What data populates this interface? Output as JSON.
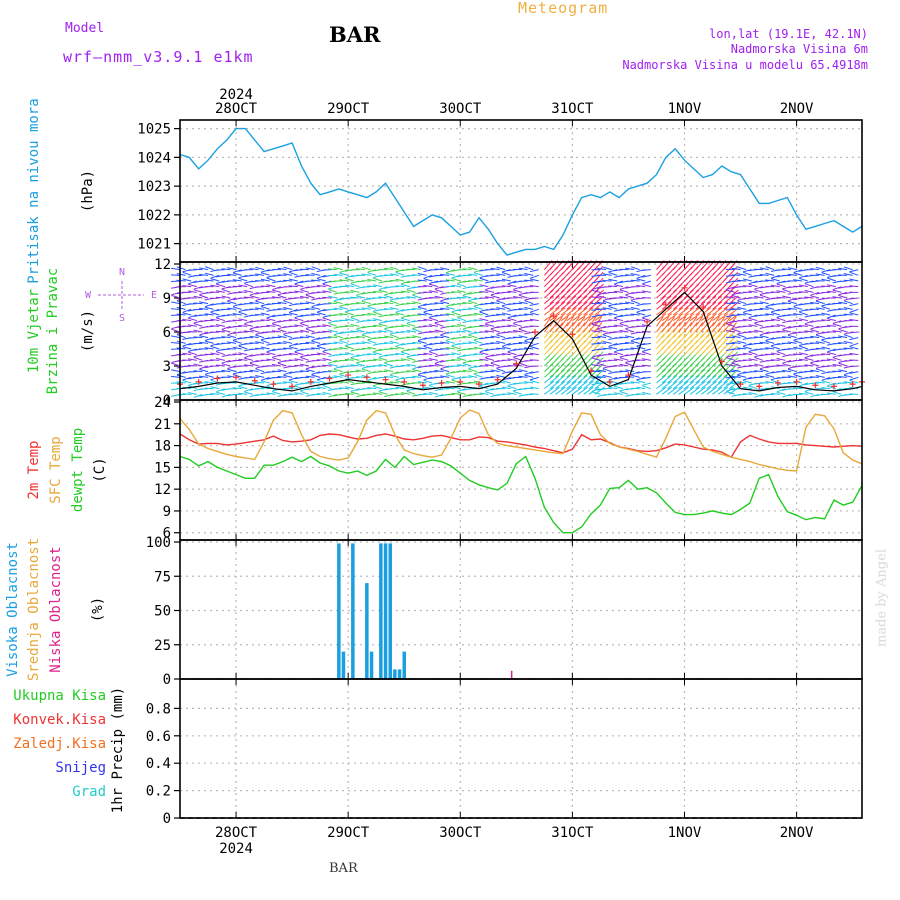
{
  "header": {
    "title": "BAR",
    "meteogram": "Meteogram",
    "model_label": "Model",
    "model_name": "wrf—nmm_v3.9.1 e1km",
    "lonlat": "lon,lat (19.1E, 42.1N)",
    "altitude": "Nadmorska Visina 6m",
    "model_altitude": "Nadmorska Visina u modelu 65.4918m",
    "made_by": "made by Angel",
    "footer": "BAR"
  },
  "colors": {
    "pressure": "#1aa0e0",
    "t2m": "#ee3333",
    "sfc": "#e8a83a",
    "dewpt": "#22cc22",
    "high_cloud": "#1aa0e0",
    "mid_cloud": "#e8a83a",
    "low_cloud": "#e0208a",
    "wind_speed": "#000000",
    "gust": "#ee3333",
    "total_precip": "#22cc22",
    "conv_precip": "#ee3333",
    "frozen_precip": "#f07020",
    "snow": "#3333ee",
    "graupel": "#22cccc",
    "vane_gradient": [
      "#8a2be2",
      "#2050ff",
      "#19c5e6",
      "#3bd14c",
      "#f2c530",
      "#ff5c2a",
      "#ff1f55"
    ]
  },
  "chart_data": {
    "type": "line",
    "time_axis": {
      "year": "2024",
      "day_labels": [
        "28OCT",
        "29OCT",
        "30OCT",
        "31OCT",
        "1NOV",
        "2NOV"
      ]
    },
    "panels": [
      {
        "id": "pressure",
        "type": "line",
        "labels": [
          "Pritisak na nivou mora"
        ],
        "unit": "(hPa)",
        "ylim": [
          1020.5,
          1025.3
        ],
        "yticks": [
          1021,
          1022,
          1023,
          1024,
          1025
        ],
        "grid": true,
        "series": [
          {
            "name": "Pritisak na nivou mora",
            "x": [
              0,
              2,
              4,
              6,
              8,
              10,
              12,
              14,
              16,
              18,
              20,
              22,
              24,
              26,
              28,
              30,
              32,
              34,
              36,
              38,
              40,
              42,
              44,
              46,
              48,
              50,
              52,
              54,
              56,
              58,
              60,
              62,
              64,
              66,
              68,
              70,
              72,
              74,
              76,
              78,
              80,
              82,
              84,
              86,
              88,
              90,
              92,
              94,
              96,
              98,
              100,
              102,
              104,
              106,
              108,
              110,
              112,
              114,
              116,
              118,
              120,
              122,
              124,
              126,
              128,
              130,
              132,
              134,
              136,
              138,
              140,
              142,
              144,
              146
            ],
            "values": [
              1024.1,
              1024.0,
              1023.6,
              1023.9,
              1024.3,
              1024.6,
              1025.0,
              1025.0,
              1024.6,
              1024.2,
              1024.3,
              1024.4,
              1024.5,
              1023.7,
              1023.1,
              1022.7,
              1022.8,
              1022.9,
              1022.8,
              1022.7,
              1022.6,
              1022.8,
              1023.1,
              1022.6,
              1022.1,
              1021.6,
              1021.8,
              1022.0,
              1021.9,
              1021.6,
              1021.3,
              1021.4,
              1021.9,
              1021.5,
              1021.0,
              1020.6,
              1020.7,
              1020.8,
              1020.8,
              1020.9,
              1020.8,
              1021.3,
              1022.0,
              1022.6,
              1022.7,
              1022.6,
              1022.8,
              1022.6,
              1022.9,
              1023.0,
              1023.1,
              1023.4,
              1024.0,
              1024.3,
              1023.9,
              1023.6,
              1023.3,
              1023.4,
              1023.7,
              1023.5,
              1023.4,
              1022.9,
              1022.4,
              1022.4,
              1022.5,
              1022.6,
              1022.0,
              1021.5,
              1021.6,
              1021.7,
              1021.8,
              1021.6,
              1021.4,
              1021.6
            ],
            "color": "#1aa0e0"
          }
        ]
      },
      {
        "id": "wind",
        "type": "vector",
        "labels": [
          "10m Vjetar",
          "Brzina i Pravac"
        ],
        "unit": "(m/s)",
        "compass": [
          "N",
          "W",
          "E",
          "S"
        ],
        "ylim": [
          0,
          12
        ],
        "yticks": [
          0,
          3,
          6,
          9,
          12
        ],
        "grid": true,
        "series": [
          {
            "name": "10m Vjetar",
            "x": [
              0,
              4,
              8,
              12,
              16,
              20,
              24,
              28,
              32,
              36,
              40,
              44,
              48,
              52,
              56,
              60,
              64,
              68,
              72,
              76,
              80,
              84,
              88,
              92,
              96,
              100,
              104,
              108,
              112,
              116,
              120,
              124,
              128,
              132,
              136,
              140,
              144,
              146
            ],
            "values": [
              1.0,
              1.2,
              1.5,
              1.6,
              1.3,
              1.0,
              0.8,
              1.2,
              1.5,
              1.8,
              1.6,
              1.4,
              1.2,
              0.9,
              1.1,
              1.2,
              1.0,
              1.4,
              2.8,
              5.6,
              7.0,
              5.4,
              2.2,
              1.2,
              1.8,
              6.5,
              8.0,
              9.5,
              7.8,
              3.0,
              1.0,
              0.8,
              1.1,
              1.2,
              0.9,
              0.8,
              1.0,
              1.2
            ],
            "color": "#000000"
          }
        ]
      },
      {
        "id": "temperature",
        "type": "line",
        "labels": [
          "2m Temp",
          "SFC Temp",
          "dewpt Temp"
        ],
        "unit": "(C)",
        "ylim": [
          5,
          24
        ],
        "yticks": [
          6,
          9,
          12,
          15,
          18,
          21,
          24
        ],
        "grid": true,
        "series": [
          {
            "name": "2m Temp",
            "x": [
              0,
              2,
              4,
              6,
              8,
              10,
              12,
              14,
              16,
              18,
              20,
              22,
              24,
              26,
              28,
              30,
              32,
              34,
              36,
              38,
              40,
              42,
              44,
              46,
              48,
              50,
              52,
              54,
              56,
              58,
              60,
              62,
              64,
              66,
              68,
              70,
              72,
              74,
              76,
              78,
              80,
              82,
              84,
              86,
              88,
              90,
              92,
              94,
              96,
              98,
              100,
              102,
              104,
              106,
              108,
              110,
              112,
              114,
              116,
              118,
              120,
              122,
              124,
              126,
              128,
              130,
              132,
              134,
              136,
              138,
              140,
              142,
              144,
              146
            ],
            "values": [
              19.6,
              18.8,
              18.2,
              18.3,
              18.3,
              18.1,
              18.2,
              18.4,
              18.6,
              18.8,
              19.3,
              18.7,
              18.5,
              18.6,
              18.8,
              19.4,
              19.6,
              19.5,
              19.2,
              18.9,
              19.0,
              19.4,
              19.6,
              19.3,
              18.9,
              18.8,
              19.0,
              19.3,
              19.4,
              19.1,
              18.8,
              18.8,
              19.2,
              19.1,
              18.6,
              18.5,
              18.3,
              18.1,
              17.8,
              17.6,
              17.3,
              17.0,
              17.5,
              19.5,
              18.8,
              18.9,
              18.4,
              17.8,
              17.6,
              17.3,
              17.2,
              17.3,
              17.7,
              18.2,
              18.1,
              17.8,
              17.5,
              17.4,
              17.1,
              16.4,
              18.5,
              19.4,
              18.9,
              18.5,
              18.3,
              18.3,
              18.3,
              18.1,
              18.0,
              17.9,
              17.8,
              17.9,
              18.0,
              17.9
            ],
            "color": "#ee3333"
          },
          {
            "name": "SFC Temp",
            "x": [
              0,
              2,
              4,
              6,
              8,
              10,
              12,
              14,
              16,
              18,
              20,
              22,
              24,
              26,
              28,
              30,
              32,
              34,
              36,
              38,
              40,
              42,
              44,
              46,
              48,
              50,
              52,
              54,
              56,
              58,
              60,
              62,
              64,
              66,
              68,
              70,
              72,
              74,
              76,
              78,
              80,
              82,
              84,
              86,
              88,
              90,
              92,
              94,
              96,
              98,
              100,
              102,
              104,
              106,
              108,
              110,
              112,
              114,
              116,
              118,
              120,
              122,
              124,
              126,
              128,
              130,
              132,
              134,
              136,
              138,
              140,
              142,
              144,
              146
            ],
            "values": [
              21.7,
              20.2,
              18.2,
              17.6,
              17.2,
              16.8,
              16.5,
              16.3,
              16.1,
              18.5,
              21.5,
              22.8,
              22.5,
              19.5,
              17.2,
              16.5,
              16.2,
              16.0,
              16.3,
              18.5,
              21.5,
              22.8,
              22.5,
              19.5,
              17.4,
              16.9,
              16.6,
              16.4,
              16.7,
              19.0,
              21.8,
              22.9,
              22.4,
              19.5,
              18.3,
              18.0,
              17.8,
              17.6,
              17.4,
              17.2,
              17.0,
              16.9,
              20.0,
              22.5,
              22.3,
              19.5,
              18.3,
              17.8,
              17.5,
              17.2,
              16.8,
              16.4,
              19.0,
              22.0,
              22.6,
              20.2,
              17.8,
              17.2,
              16.8,
              16.4,
              16.1,
              15.8,
              15.4,
              15.1,
              14.8,
              14.6,
              14.5,
              20.5,
              22.3,
              22.1,
              20.3,
              17.0,
              16.0,
              15.5
            ],
            "color": "#e8a83a"
          },
          {
            "name": "dewpt Temp",
            "x": [
              0,
              2,
              4,
              6,
              8,
              10,
              12,
              14,
              16,
              18,
              20,
              22,
              24,
              26,
              28,
              30,
              32,
              34,
              36,
              38,
              40,
              42,
              44,
              46,
              48,
              50,
              52,
              54,
              56,
              58,
              60,
              62,
              64,
              66,
              68,
              70,
              72,
              74,
              76,
              78,
              80,
              82,
              84,
              86,
              88,
              90,
              92,
              94,
              96,
              98,
              100,
              102,
              104,
              106,
              108,
              110,
              112,
              114,
              116,
              118,
              120,
              122,
              124,
              126,
              128,
              130,
              132,
              134,
              136,
              138,
              140,
              142,
              144,
              146
            ],
            "values": [
              16.5,
              16.1,
              15.2,
              15.8,
              15.0,
              14.5,
              14.0,
              13.5,
              13.5,
              15.3,
              15.3,
              15.8,
              16.4,
              15.8,
              16.5,
              15.6,
              15.2,
              14.5,
              14.2,
              14.5,
              13.9,
              14.5,
              16.1,
              15.0,
              16.5,
              15.4,
              15.7,
              16.0,
              15.8,
              15.2,
              14.2,
              13.2,
              12.6,
              12.2,
              11.9,
              12.8,
              15.5,
              16.5,
              13.5,
              9.5,
              7.4,
              6.0,
              6.0,
              6.8,
              8.6,
              9.8,
              12.1,
              12.2,
              13.2,
              12.0,
              12.2,
              11.5,
              10.1,
              8.8,
              8.5,
              8.5,
              8.7,
              9.0,
              8.7,
              8.5,
              9.2,
              10.1,
              13.5,
              14.0,
              11.0,
              8.9,
              8.4,
              7.8,
              8.1,
              7.9,
              10.5,
              9.8,
              10.2,
              12.5
            ],
            "color": "#22cc22"
          }
        ]
      },
      {
        "id": "cloud",
        "type": "bar",
        "labels": [
          "Visoka Oblacnost",
          "Srednja Oblacnost",
          "Niska Oblacnost"
        ],
        "unit": "(%)",
        "ylim": [
          0,
          100
        ],
        "yticks": [
          0,
          25,
          50,
          75,
          100
        ],
        "grid": true,
        "series": [
          {
            "name": "Visoka Oblacnost",
            "x": [
              34,
              35,
              37,
              40,
              41,
              43,
              44,
              45,
              46,
              47,
              48
            ],
            "values": [
              99,
              20,
              99,
              70,
              20,
              99,
              99,
              99,
              7,
              7,
              20
            ],
            "color": "#1aa0e0"
          },
          {
            "name": "Srednja Oblacnost",
            "x": [],
            "values": [],
            "color": "#e8a83a"
          },
          {
            "name": "Niska Oblacnost",
            "x": [
              71
            ],
            "values": [
              6
            ],
            "color": "#e0208a"
          }
        ]
      },
      {
        "id": "precip",
        "type": "line",
        "labels": [
          "Ukupna Kisa",
          "Konvek.Kisa",
          "Zaledj.Kisa",
          "Snijeg",
          "Grad"
        ],
        "unit": "1hr Precip (mm)",
        "ylim": [
          0,
          1.0
        ],
        "yticks": [
          0,
          0.2,
          0.4,
          0.6,
          0.8
        ],
        "grid": true,
        "series": []
      }
    ]
  }
}
